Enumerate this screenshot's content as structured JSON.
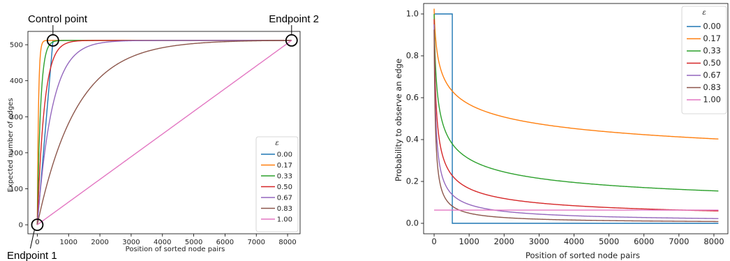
{
  "chart_data": [
    {
      "type": "line",
      "xlabel": "Position of sorted node pairs",
      "ylabel": "Expected number of edges",
      "xlim": [
        -300,
        8400
      ],
      "ylim": [
        -25,
        537
      ],
      "xticks": [
        0,
        1000,
        2000,
        3000,
        4000,
        5000,
        6000,
        7000,
        8000
      ],
      "yticks": [
        0,
        100,
        200,
        300,
        400,
        500
      ],
      "legend_title": "ε",
      "legend_position": "lower-right",
      "grid": false,
      "annotations": [
        {
          "text": "Control point",
          "x": 500,
          "y": 512
        },
        {
          "text": "Endpoint 2",
          "x": 8128,
          "y": 512
        },
        {
          "text": "Endpoint 1",
          "x": 0,
          "y": 0
        }
      ],
      "total_pairs": 8128,
      "total_edges": 512,
      "series": [
        {
          "name": "0.00",
          "color": "#1f77b4"
        },
        {
          "name": "0.17",
          "color": "#ff7f0e"
        },
        {
          "name": "0.33",
          "color": "#2ca02c"
        },
        {
          "name": "0.50",
          "color": "#d62728"
        },
        {
          "name": "0.67",
          "color": "#9467bd"
        },
        {
          "name": "0.83",
          "color": "#8c564b"
        },
        {
          "name": "1.00",
          "color": "#e377c2"
        }
      ]
    },
    {
      "type": "line",
      "xlabel": "Position of sorted node pairs",
      "ylabel": "Probability to observe an edge",
      "xlim": [
        -300,
        8400
      ],
      "ylim": [
        -0.05,
        1.05
      ],
      "xticks": [
        0,
        1000,
        2000,
        3000,
        4000,
        5000,
        6000,
        7000,
        8000
      ],
      "yticks": [
        "0.0",
        "0.2",
        "0.4",
        "0.6",
        "0.8",
        "1.0"
      ],
      "legend_title": "ε",
      "legend_position": "upper-right",
      "grid": false,
      "series": [
        {
          "name": "0.00",
          "color": "#1f77b4"
        },
        {
          "name": "0.17",
          "color": "#ff7f0e"
        },
        {
          "name": "0.33",
          "color": "#2ca02c"
        },
        {
          "name": "0.50",
          "color": "#d62728"
        },
        {
          "name": "0.67",
          "color": "#9467bd"
        },
        {
          "name": "0.83",
          "color": "#8c564b"
        },
        {
          "name": "1.00",
          "color": "#e377c2"
        }
      ]
    }
  ]
}
